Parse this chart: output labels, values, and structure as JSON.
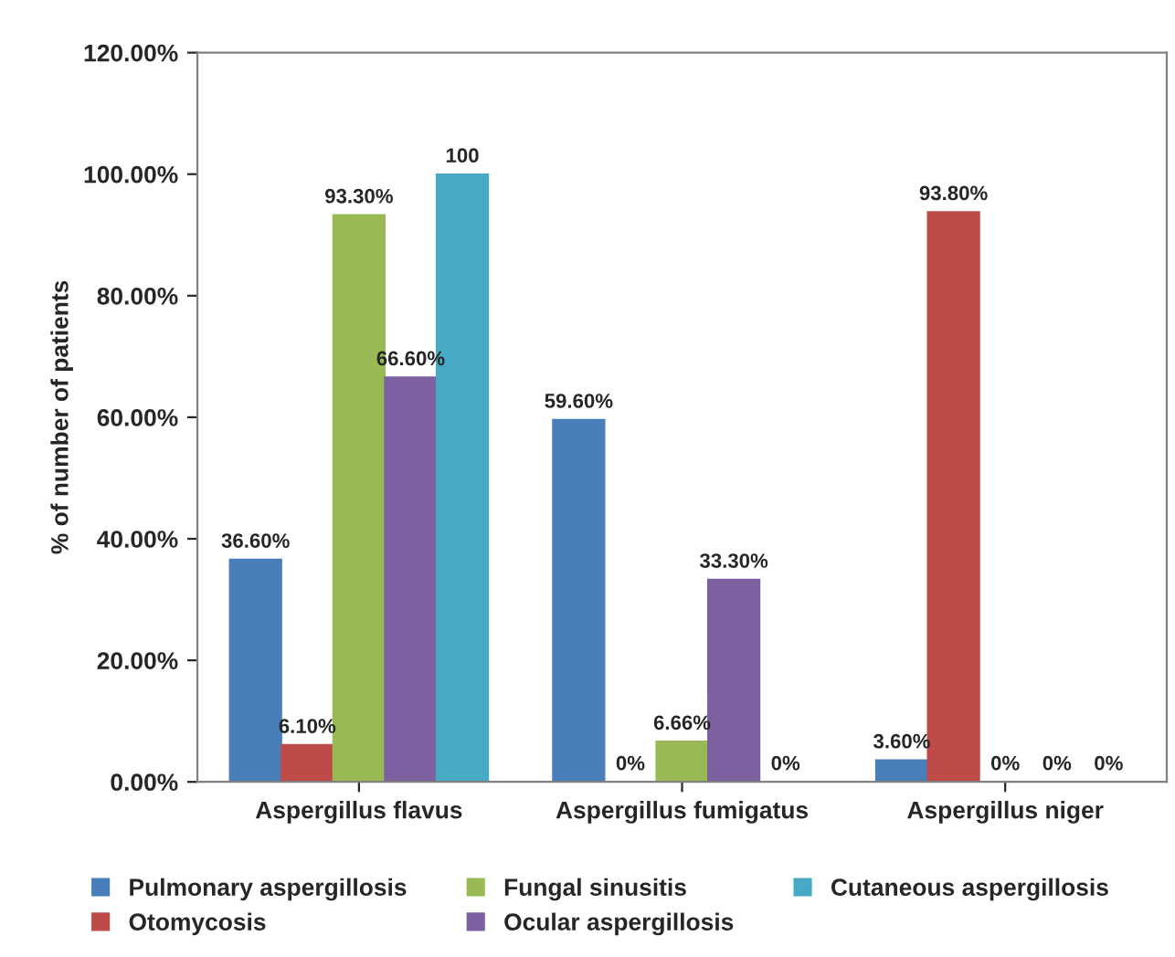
{
  "chart_data": {
    "type": "bar",
    "ylabel": "% of number of patients",
    "categories": [
      "Aspergillus flavus",
      "Aspergillus fumigatus",
      "Aspergillus niger"
    ],
    "series": [
      {
        "name": "Pulmonary aspergillosis",
        "color": "#4a7ebb",
        "values": [
          36.6,
          59.6,
          3.6
        ],
        "value_labels": [
          "36.60%",
          "59.60%",
          "3.60%"
        ]
      },
      {
        "name": "Otomycosis",
        "color": "#be4b48",
        "values": [
          6.1,
          0,
          93.8
        ],
        "value_labels": [
          "6.10%",
          "0%",
          "93.80%"
        ]
      },
      {
        "name": "Fungal sinusitis",
        "color": "#98b954",
        "values": [
          93.3,
          6.66,
          0
        ],
        "value_labels": [
          "93.30%",
          "6.66%",
          "0%"
        ]
      },
      {
        "name": "Ocular aspergillosis",
        "color": "#7d60a0",
        "values": [
          66.6,
          33.3,
          0
        ],
        "value_labels": [
          "66.60%",
          "33.30%",
          "0%"
        ]
      },
      {
        "name": "Cutaneous aspergillosis",
        "color": "#46aac5",
        "values": [
          100,
          0,
          0
        ],
        "value_labels": [
          "100",
          "0%",
          "0%"
        ]
      }
    ],
    "ylim": [
      0,
      120
    ],
    "yticks": [
      {
        "value": 0,
        "label": "0.00%"
      },
      {
        "value": 20,
        "label": "20.00%"
      },
      {
        "value": 40,
        "label": "40.00%"
      },
      {
        "value": 60,
        "label": "60.00%"
      },
      {
        "value": 80,
        "label": "80.00%"
      },
      {
        "value": 100,
        "label": "100.00%"
      },
      {
        "value": 120,
        "label": "120.00%"
      }
    ],
    "grid": false,
    "legend": "bottom"
  }
}
